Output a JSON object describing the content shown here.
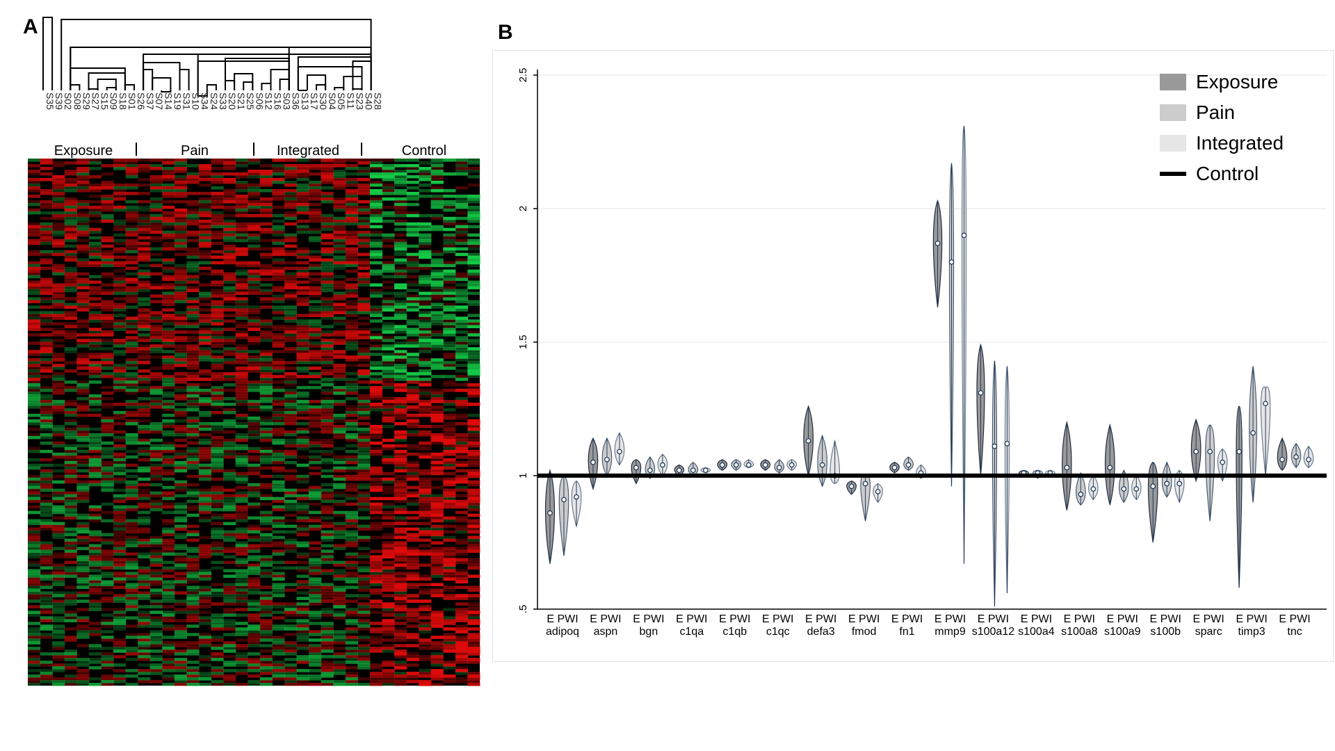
{
  "panels": {
    "a": "A",
    "b": "B"
  },
  "dendrogram": {
    "samples": [
      "S35",
      "S39",
      "S02",
      "S08",
      "S29",
      "S27",
      "S15",
      "S09",
      "S18",
      "S01",
      "S26",
      "S37",
      "S07",
      "S14",
      "S19",
      "S31",
      "S10",
      "S34",
      "S24",
      "S33",
      "S20",
      "S21",
      "S25",
      "S06",
      "S12",
      "S16",
      "S03",
      "S36",
      "S13",
      "S17",
      "S30",
      "S04",
      "S05",
      "S11",
      "S23",
      "S40",
      "S28"
    ],
    "groups": [
      "Exposure",
      "Pain",
      "Integrated",
      "Control"
    ]
  },
  "heatmap": {
    "colors": {
      "high": "#ff0000",
      "mid": "#000000",
      "low": "#00ff44"
    }
  },
  "chart_data": {
    "type": "violin",
    "y_ticks": [
      "2.5",
      "2",
      "1.5",
      "1",
      ".5"
    ],
    "ylim": [
      0.5,
      2.5
    ],
    "reference_line": {
      "value": 1,
      "label": "Control"
    },
    "genes": [
      "adipoq",
      "aspn",
      "bgn",
      "c1qa",
      "c1qb",
      "c1qc",
      "defa3",
      "fmod",
      "fn1",
      "mmp9",
      "s100a12",
      "s100a4",
      "s100a8",
      "s100a9",
      "s100b",
      "sparc",
      "timp3",
      "tnc"
    ],
    "group_labels": [
      "E",
      "P",
      "W",
      "I"
    ],
    "series": [
      {
        "name": "Exposure",
        "color": "#999999",
        "medians": [
          0.86,
          1.05,
          1.03,
          1.02,
          1.04,
          1.04,
          1.13,
          0.96,
          1.03,
          1.87,
          1.31,
          1.01,
          1.03,
          1.03,
          0.96,
          1.09,
          1.09,
          1.06
        ],
        "ranges": [
          [
            0.67,
            1.02
          ],
          [
            0.95,
            1.14
          ],
          [
            0.97,
            1.06
          ],
          [
            1.0,
            1.04
          ],
          [
            1.02,
            1.06
          ],
          [
            1.02,
            1.06
          ],
          [
            1.0,
            1.26
          ],
          [
            0.93,
            0.98
          ],
          [
            1.01,
            1.05
          ],
          [
            1.63,
            2.03
          ],
          [
            1.0,
            1.49
          ],
          [
            1.0,
            1.02
          ],
          [
            0.87,
            1.2
          ],
          [
            0.89,
            1.19
          ],
          [
            0.75,
            1.05
          ],
          [
            0.98,
            1.21
          ],
          [
            0.58,
            1.26
          ],
          [
            1.02,
            1.14
          ]
        ]
      },
      {
        "name": "Pain",
        "color": "#cccccc",
        "medians": [
          0.91,
          1.06,
          1.02,
          1.02,
          1.04,
          1.03,
          1.04,
          0.97,
          1.04,
          1.8,
          1.11,
          1.01,
          0.93,
          0.95,
          0.97,
          1.09,
          1.16,
          1.07
        ],
        "ranges": [
          [
            0.7,
            1.0
          ],
          [
            1.0,
            1.14
          ],
          [
            0.99,
            1.07
          ],
          [
            1.0,
            1.05
          ],
          [
            1.02,
            1.06
          ],
          [
            1.01,
            1.06
          ],
          [
            0.96,
            1.15
          ],
          [
            0.83,
            1.0
          ],
          [
            1.02,
            1.07
          ],
          [
            0.96,
            2.17
          ],
          [
            0.51,
            1.43
          ],
          [
            0.99,
            1.02
          ],
          [
            0.89,
            1.01
          ],
          [
            0.9,
            1.02
          ],
          [
            0.92,
            1.05
          ],
          [
            0.83,
            1.19
          ],
          [
            0.9,
            1.41
          ],
          [
            1.03,
            1.12
          ]
        ]
      },
      {
        "name": "Integrated",
        "color": "#e6e6e6",
        "medians": [
          0.92,
          1.09,
          1.04,
          1.02,
          1.04,
          1.04,
          1.0,
          0.94,
          1.01,
          1.9,
          1.12,
          1.01,
          0.95,
          0.95,
          0.97,
          1.05,
          1.27,
          1.06
        ],
        "ranges": [
          [
            0.81,
            0.98
          ],
          [
            1.04,
            1.16
          ],
          [
            1.0,
            1.08
          ],
          [
            1.01,
            1.03
          ],
          [
            1.03,
            1.06
          ],
          [
            1.02,
            1.06
          ],
          [
            0.97,
            1.13
          ],
          [
            0.9,
            0.97
          ],
          [
            0.99,
            1.04
          ],
          [
            0.67,
            2.31
          ],
          [
            0.56,
            1.41
          ],
          [
            1.0,
            1.02
          ],
          [
            0.91,
            1.0
          ],
          [
            0.91,
            1.0
          ],
          [
            0.9,
            1.02
          ],
          [
            0.98,
            1.1
          ],
          [
            1.0,
            1.33
          ],
          [
            1.03,
            1.11
          ]
        ]
      }
    ],
    "legend": {
      "position": "top-right",
      "items": [
        {
          "label": "Exposure",
          "color": "#999999",
          "kind": "box"
        },
        {
          "label": "Pain",
          "color": "#cccccc",
          "kind": "box"
        },
        {
          "label": "Integrated",
          "color": "#e6e6e6",
          "kind": "box"
        },
        {
          "label": "Control",
          "color": "#000000",
          "kind": "line"
        }
      ]
    }
  }
}
